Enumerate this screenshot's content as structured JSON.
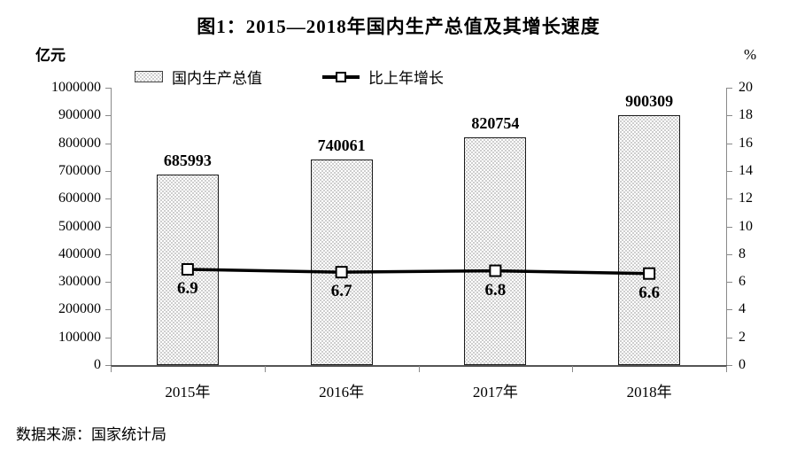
{
  "title": "图1：2015—2018年国内生产总值及其增长速度",
  "source_note": "数据来源：国家统计局",
  "chart_data": {
    "type": "bar",
    "subtype": "bar-and-line-combo",
    "categories": [
      "2015年",
      "2016年",
      "2017年",
      "2018年"
    ],
    "series": [
      {
        "name": "国内生产总值",
        "type": "bar",
        "axis": "left",
        "values": [
          685993,
          740061,
          820754,
          900309
        ]
      },
      {
        "name": "比上年增长",
        "type": "line",
        "axis": "right",
        "values": [
          6.9,
          6.7,
          6.8,
          6.6
        ]
      }
    ],
    "left_axis": {
      "unit": "亿元",
      "min": 0,
      "max": 1000000,
      "step": 100000
    },
    "right_axis": {
      "unit": "%",
      "min": 0,
      "max": 20,
      "step": 2
    },
    "grid": false,
    "legend_position": "top",
    "colors": {
      "bar_fill": "#ffffff",
      "bar_pattern_dot": "#bdbdbd",
      "bar_border": "#1a1a1a",
      "line": "#000000",
      "marker_fill": "#ffffff",
      "axis": "#8a8a8a",
      "text": "#000000"
    }
  }
}
